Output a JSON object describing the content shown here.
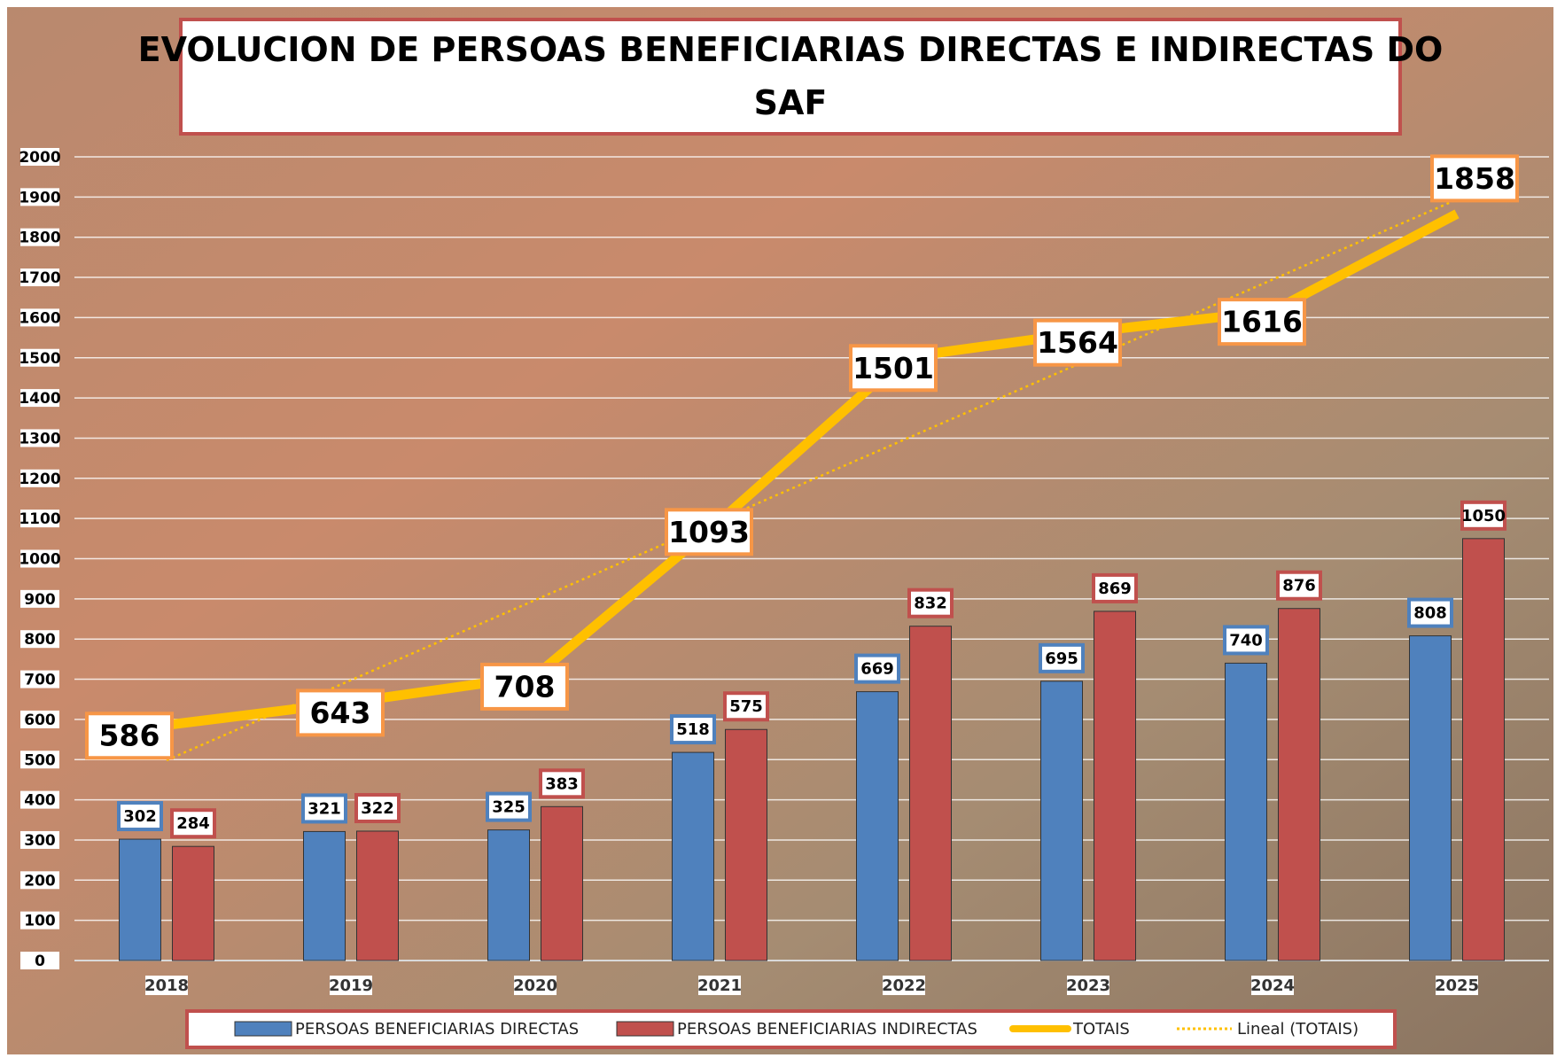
{
  "chart_data": {
    "type": "bar-line",
    "title": "EVOLUCION DE PERSOAS BENEFICIARIAS DIRECTAS E INDIRECTAS DO SAF",
    "categories": [
      "2018",
      "2019",
      "2020",
      "2021",
      "2022",
      "2023",
      "2024",
      "2025"
    ],
    "series": [
      {
        "name": "PERSOAS BENEFICIARIAS DIRECTAS",
        "color": "#4f81bd",
        "type": "bar",
        "values": [
          302,
          321,
          325,
          518,
          669,
          695,
          740,
          808
        ]
      },
      {
        "name": "PERSOAS BENEFICIARIAS INDIRECTAS",
        "color": "#c0504d",
        "type": "bar",
        "values": [
          284,
          322,
          383,
          575,
          832,
          869,
          876,
          1050
        ]
      },
      {
        "name": "TOTAIS",
        "color": "#ffc000",
        "type": "line",
        "values": [
          586,
          643,
          708,
          1093,
          1501,
          1564,
          1616,
          1858
        ]
      }
    ],
    "trendline": {
      "name": "Lineal (TOTAIS)",
      "series": 2,
      "kind": "linear",
      "color": "#ffc000"
    },
    "ylim": [
      0,
      2000
    ],
    "yticks": [
      0,
      100,
      200,
      300,
      400,
      500,
      600,
      700,
      800,
      900,
      1000,
      1100,
      1200,
      1300,
      1400,
      1500,
      1600,
      1700,
      1800,
      1900,
      2000
    ],
    "grid": true,
    "legend": "bottom"
  }
}
